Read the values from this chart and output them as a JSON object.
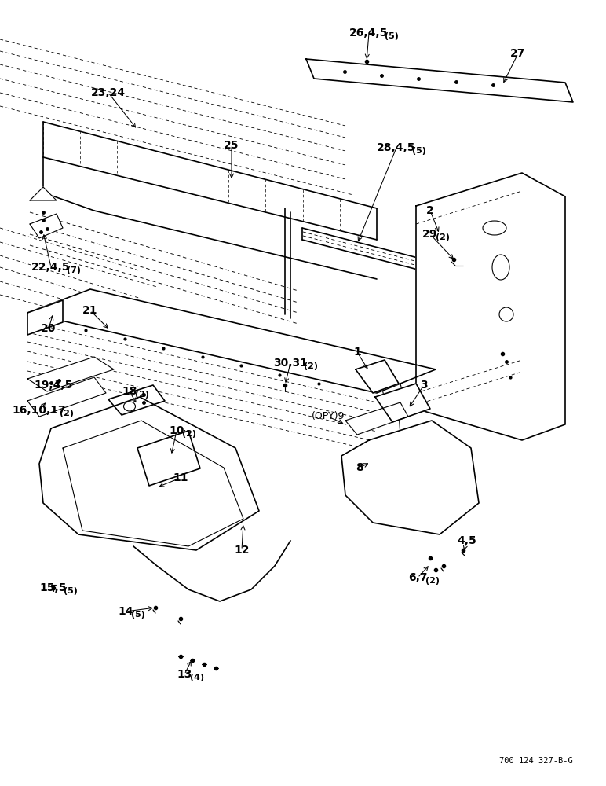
{
  "bg_color": "#ffffff",
  "line_color": "#000000",
  "ref_code": "700 124 327-B-G",
  "fig_width": 7.72,
  "fig_height": 10.0,
  "dpi": 100
}
